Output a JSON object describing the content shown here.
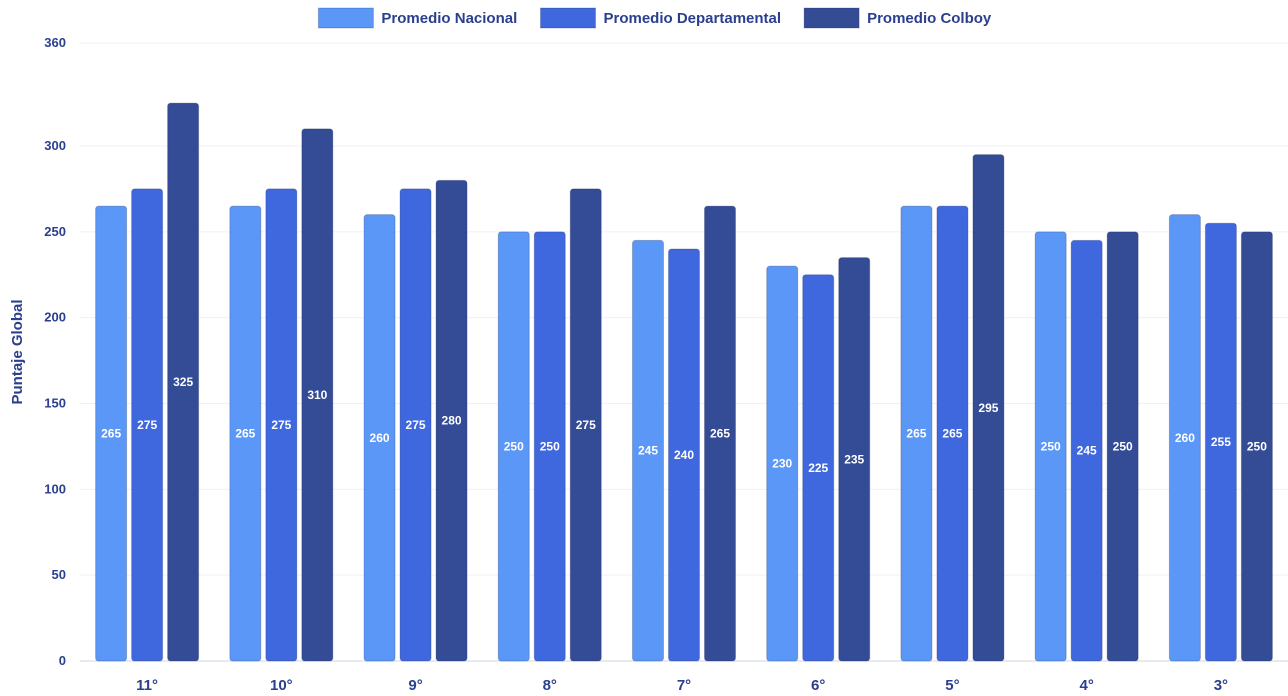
{
  "chart_data": {
    "type": "bar",
    "ylabel": "Puntaje Global",
    "xlabel": "",
    "ylim": [
      0,
      360
    ],
    "yticks": [
      0,
      50,
      100,
      150,
      200,
      250,
      300,
      360
    ],
    "grid": true,
    "legend_position": "top-center",
    "categories": [
      "11°",
      "10°",
      "9°",
      "8°",
      "7°",
      "6°",
      "5°",
      "4°",
      "3°"
    ],
    "series": [
      {
        "name": "Promedio Nacional",
        "color": "#5b97f7",
        "values": [
          265,
          265,
          260,
          250,
          245,
          230,
          265,
          250,
          260
        ]
      },
      {
        "name": "Promedio Departamental",
        "color": "#3f68de",
        "values": [
          275,
          275,
          275,
          250,
          240,
          225,
          265,
          245,
          255
        ]
      },
      {
        "name": "Promedio Colboy",
        "color": "#344b96",
        "values": [
          325,
          310,
          280,
          275,
          265,
          235,
          295,
          250,
          250
        ]
      }
    ]
  }
}
